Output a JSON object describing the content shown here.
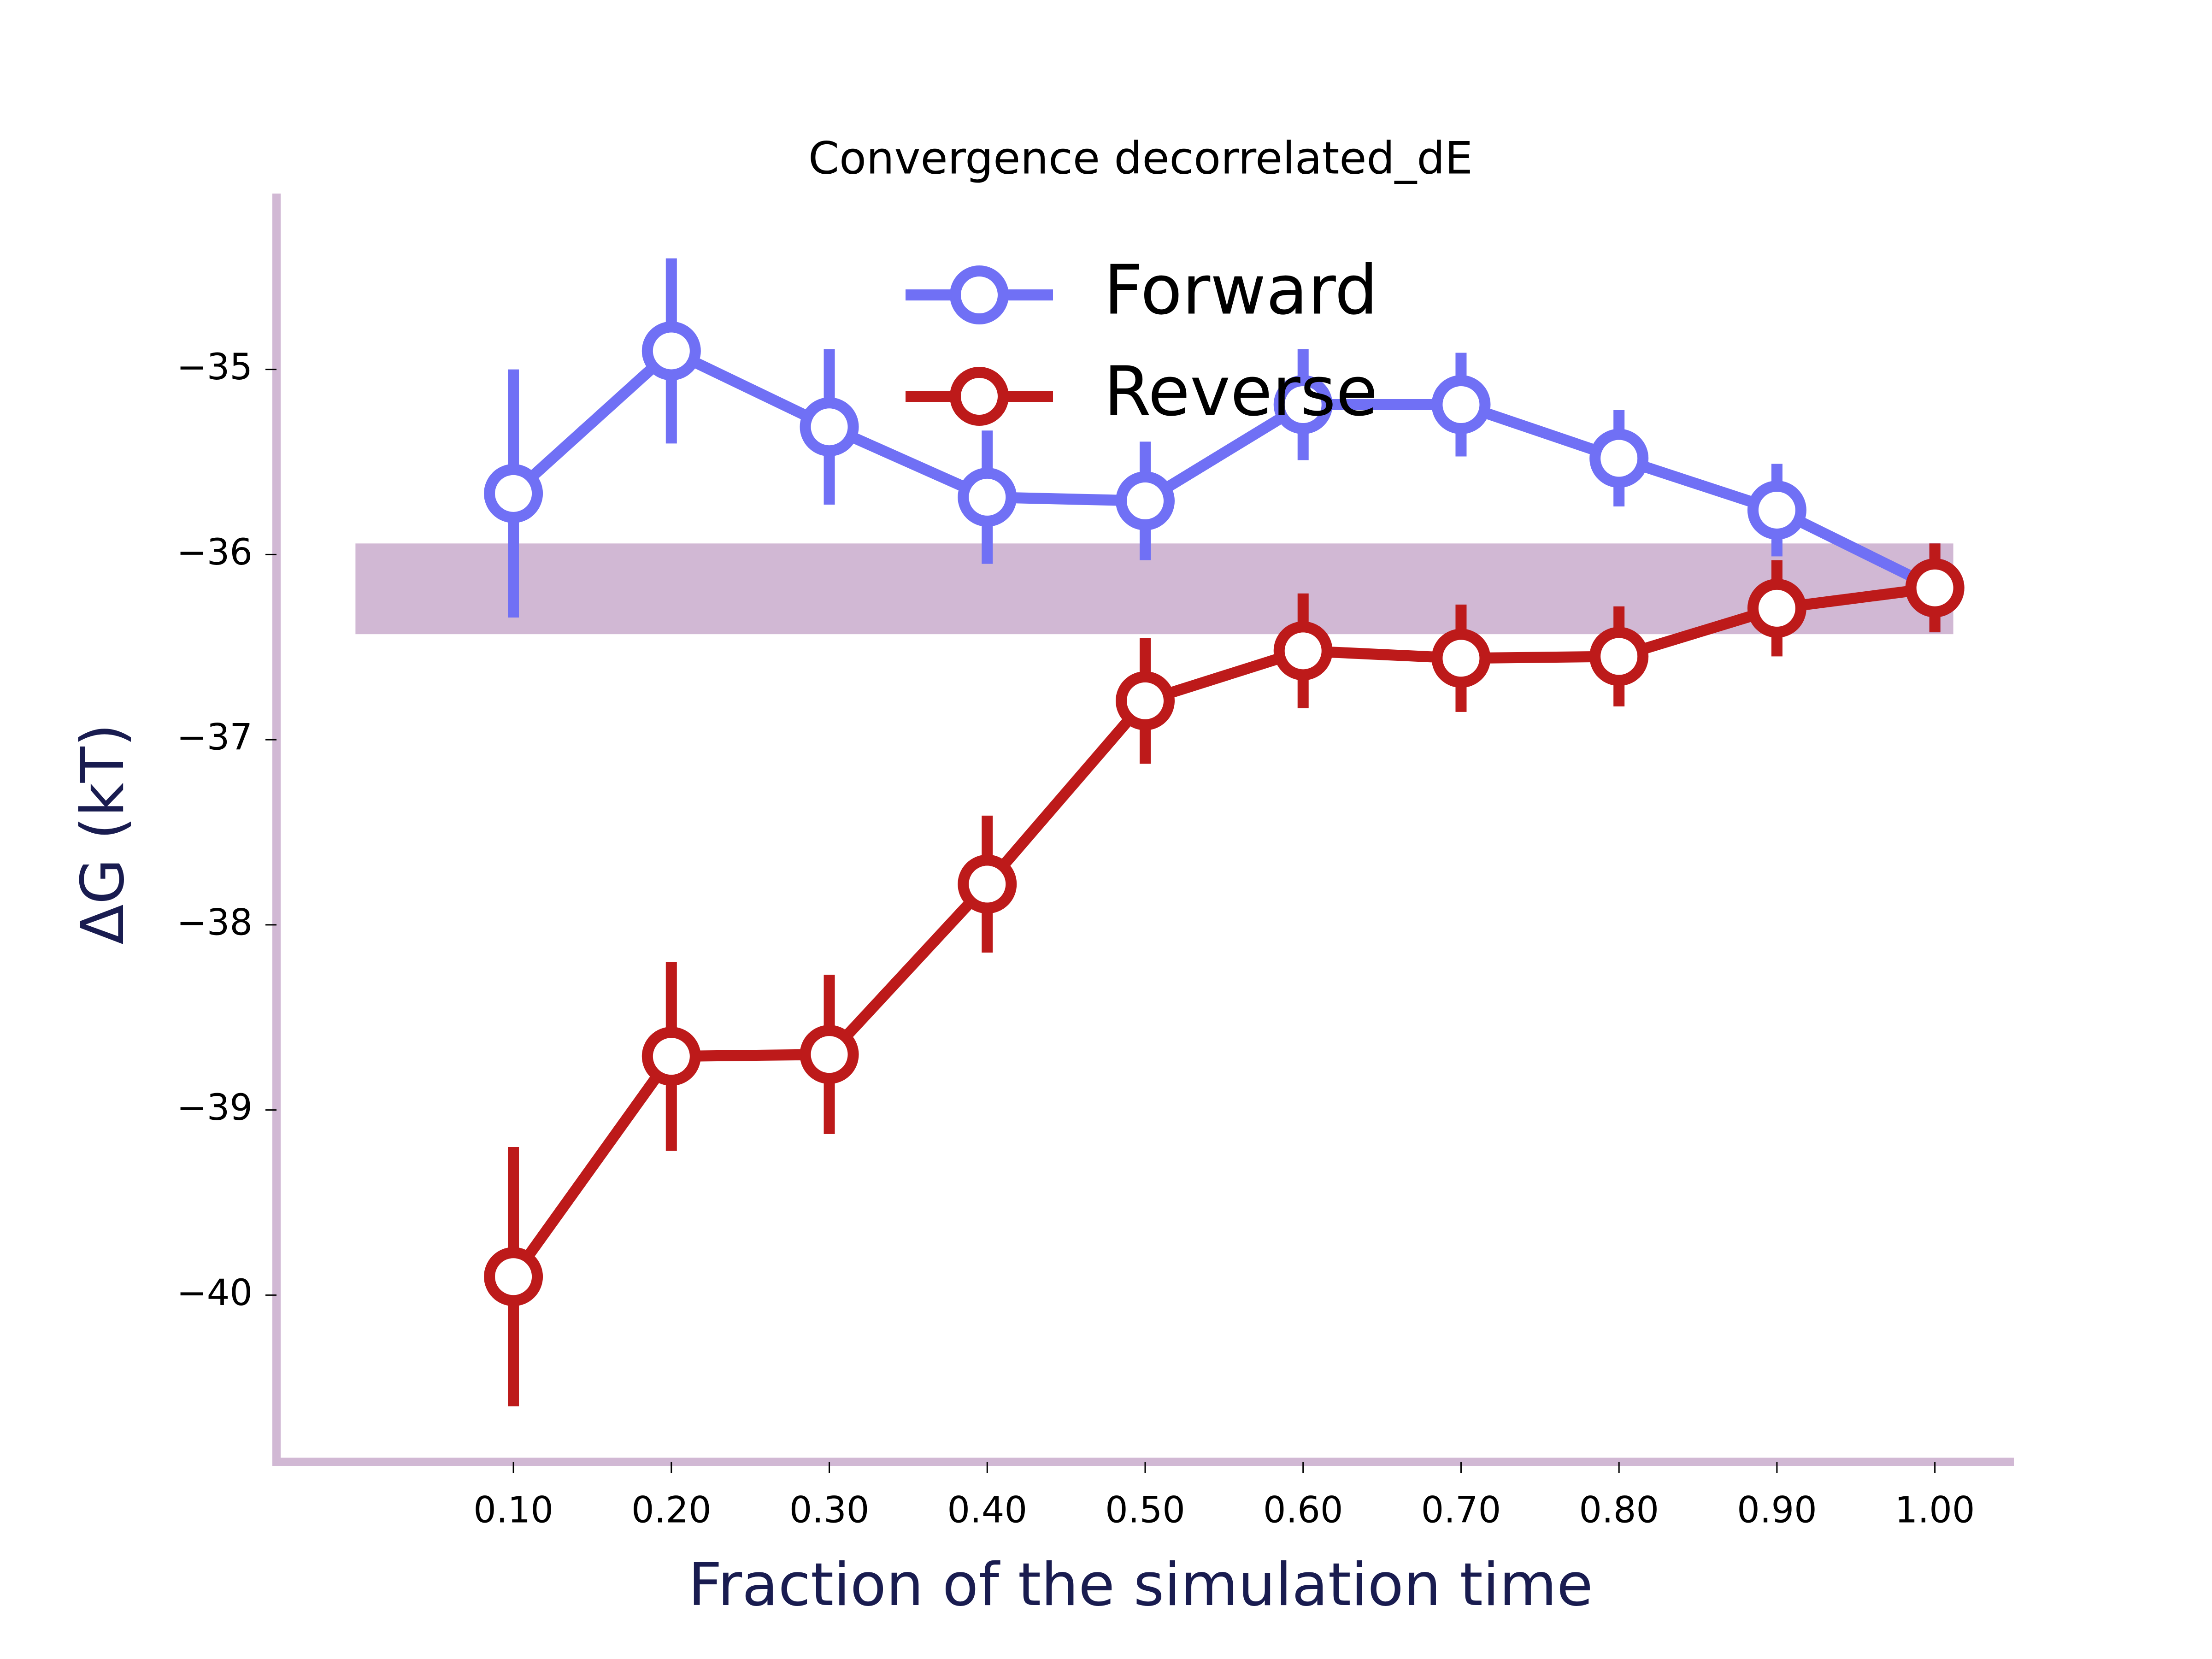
{
  "chart_data": {
    "type": "line",
    "title": "Convergence decorrelated_dE",
    "xlabel": "Fraction of the simulation time",
    "ylabel": "ΔG (kT)",
    "x": [
      0.1,
      0.2,
      0.3,
      0.4,
      0.5,
      0.6,
      0.7,
      0.8,
      0.9,
      1.0
    ],
    "x_tick_labels": [
      "0.10",
      "0.20",
      "0.30",
      "0.40",
      "0.50",
      "0.60",
      "0.70",
      "0.80",
      "0.90",
      "1.00"
    ],
    "y_ticks": [
      -35,
      -36,
      -37,
      -38,
      -39,
      -40
    ],
    "y_tick_labels": [
      "−35",
      "−36",
      "−37",
      "−38",
      "−39",
      "−40"
    ],
    "xlim": [
      -0.05,
      1.05
    ],
    "ylim": [
      -40.9,
      -34.05
    ],
    "band": {
      "ymin": -36.43,
      "ymax": -35.94,
      "color": "#d1b8d4"
    },
    "axis_color": "#d1b8d4",
    "legend_position": "top-center",
    "series": [
      {
        "name": "Forward",
        "color": "#7070f5",
        "y": [
          -35.67,
          -34.9,
          -35.31,
          -35.69,
          -35.71,
          -35.19,
          -35.19,
          -35.48,
          -35.76,
          -36.18
        ],
        "err": [
          0.67,
          0.5,
          0.42,
          0.36,
          0.32,
          0.3,
          0.28,
          0.26,
          0.25,
          0.24
        ]
      },
      {
        "name": "Reverse",
        "color": "#bd1a1a",
        "y": [
          -39.9,
          -38.71,
          -38.7,
          -37.78,
          -36.79,
          -36.52,
          -36.56,
          -36.55,
          -36.29,
          -36.18
        ],
        "err": [
          0.7,
          0.51,
          0.43,
          0.37,
          0.34,
          0.31,
          0.29,
          0.27,
          0.26,
          0.24
        ]
      }
    ]
  }
}
